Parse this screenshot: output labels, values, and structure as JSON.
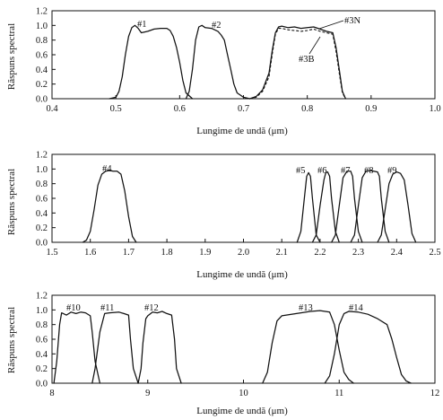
{
  "chart_data": [
    {
      "type": "line",
      "xlabel": "Lungime de undă (μm)",
      "ylabel": "Răspuns spectral",
      "xlim": [
        0.4,
        1.0
      ],
      "ylim": [
        0.0,
        1.2
      ],
      "x_ticks": [
        "0.4",
        "0.5",
        "0.6",
        "0.7",
        "0.8",
        "0.9",
        "1.0"
      ],
      "y_ticks": [
        "0.0",
        "0.2",
        "0.4",
        "0.6",
        "0.8",
        "1.0",
        "1.2"
      ],
      "series": [
        {
          "name": "#1",
          "x": [
            0.49,
            0.5,
            0.505,
            0.51,
            0.515,
            0.52,
            0.525,
            0.53,
            0.535,
            0.54,
            0.55,
            0.56,
            0.57,
            0.58,
            0.585,
            0.59,
            0.595,
            0.6,
            0.605,
            0.61,
            0.62
          ],
          "y": [
            0.0,
            0.02,
            0.1,
            0.3,
            0.6,
            0.85,
            0.97,
            1.0,
            0.96,
            0.9,
            0.92,
            0.95,
            0.96,
            0.96,
            0.93,
            0.85,
            0.7,
            0.5,
            0.25,
            0.08,
            0.0
          ]
        },
        {
          "name": "#2",
          "x": [
            0.61,
            0.615,
            0.62,
            0.625,
            0.63,
            0.635,
            0.64,
            0.65,
            0.66,
            0.665,
            0.67,
            0.675,
            0.68,
            0.685,
            0.69,
            0.7,
            0.71
          ],
          "y": [
            0.0,
            0.1,
            0.4,
            0.8,
            0.98,
            1.0,
            0.97,
            0.96,
            0.92,
            0.87,
            0.8,
            0.6,
            0.4,
            0.2,
            0.08,
            0.02,
            0.0
          ]
        },
        {
          "name": "#3N",
          "x": [
            0.71,
            0.72,
            0.73,
            0.74,
            0.745,
            0.75,
            0.755,
            0.76,
            0.77,
            0.78,
            0.79,
            0.8,
            0.81,
            0.82,
            0.83,
            0.84,
            0.845,
            0.85,
            0.855,
            0.86
          ],
          "y": [
            0.0,
            0.03,
            0.12,
            0.35,
            0.65,
            0.9,
            0.98,
            0.99,
            0.97,
            0.98,
            0.96,
            0.97,
            0.98,
            0.95,
            0.92,
            0.9,
            0.7,
            0.4,
            0.1,
            0.0
          ]
        },
        {
          "name": "#3B",
          "x": [
            0.71,
            0.72,
            0.73,
            0.74,
            0.745,
            0.75,
            0.755,
            0.76,
            0.77,
            0.78,
            0.79,
            0.8,
            0.81,
            0.82,
            0.83,
            0.84,
            0.845,
            0.85,
            0.855,
            0.86
          ],
          "y": [
            0.0,
            0.02,
            0.1,
            0.3,
            0.6,
            0.88,
            0.96,
            0.96,
            0.94,
            0.93,
            0.92,
            0.93,
            0.95,
            0.92,
            0.9,
            0.88,
            0.65,
            0.35,
            0.08,
            0.0
          ]
        }
      ]
    },
    {
      "type": "line",
      "xlabel": "Lungime de undă (μm)",
      "ylabel": "Răspuns spectral",
      "xlim": [
        1.5,
        2.5
      ],
      "ylim": [
        0.0,
        1.2
      ],
      "x_ticks": [
        "1.5",
        "1.6",
        "1.7",
        "1.8",
        "1.9",
        "2.0",
        "2.1",
        "2.2",
        "2.3",
        "2.4",
        "2.5"
      ],
      "y_ticks": [
        "0.0",
        "0.2",
        "0.4",
        "0.6",
        "0.8",
        "1.0",
        "1.2"
      ],
      "series": [
        {
          "name": "#4",
          "x": [
            1.58,
            1.59,
            1.6,
            1.61,
            1.62,
            1.63,
            1.64,
            1.65,
            1.66,
            1.67,
            1.68,
            1.69,
            1.7,
            1.71,
            1.72
          ],
          "y": [
            0.0,
            0.03,
            0.15,
            0.45,
            0.78,
            0.93,
            0.97,
            0.98,
            0.97,
            0.97,
            0.93,
            0.7,
            0.35,
            0.08,
            0.0
          ]
        },
        {
          "name": "#5",
          "x": [
            2.14,
            2.15,
            2.16,
            2.165,
            2.17,
            2.175,
            2.18,
            2.19,
            2.2
          ],
          "y": [
            0.0,
            0.15,
            0.65,
            0.9,
            0.95,
            0.9,
            0.6,
            0.1,
            0.0
          ]
        },
        {
          "name": "#6",
          "x": [
            2.18,
            2.19,
            2.2,
            2.21,
            2.215,
            2.22,
            2.225,
            2.23,
            2.24,
            2.25
          ],
          "y": [
            0.0,
            0.1,
            0.5,
            0.85,
            0.95,
            0.96,
            0.9,
            0.6,
            0.15,
            0.0
          ]
        },
        {
          "name": "#7",
          "x": [
            2.23,
            2.24,
            2.25,
            2.26,
            2.27,
            2.28,
            2.285,
            2.29,
            2.3,
            2.31
          ],
          "y": [
            0.0,
            0.1,
            0.5,
            0.88,
            0.97,
            0.97,
            0.9,
            0.6,
            0.15,
            0.0
          ]
        },
        {
          "name": "#8",
          "x": [
            2.28,
            2.29,
            2.3,
            2.31,
            2.32,
            2.33,
            2.34,
            2.35,
            2.355,
            2.36,
            2.37,
            2.38
          ],
          "y": [
            0.0,
            0.1,
            0.5,
            0.88,
            0.97,
            0.98,
            0.97,
            0.96,
            0.9,
            0.6,
            0.15,
            0.0
          ]
        },
        {
          "name": "#9",
          "x": [
            2.35,
            2.36,
            2.37,
            2.38,
            2.39,
            2.4,
            2.41,
            2.42,
            2.43,
            2.44,
            2.45
          ],
          "y": [
            0.0,
            0.1,
            0.45,
            0.8,
            0.93,
            0.96,
            0.94,
            0.85,
            0.5,
            0.12,
            0.0
          ]
        }
      ]
    },
    {
      "type": "line",
      "xlabel": "Lungime de undă (μm)",
      "ylabel": "Răspuns spectral",
      "xlim": [
        8,
        12
      ],
      "ylim": [
        0.0,
        1.2
      ],
      "x_ticks": [
        "8",
        "9",
        "10",
        "11",
        "12"
      ],
      "y_ticks": [
        "0.0",
        "0.2",
        "0.4",
        "0.6",
        "0.8",
        "1.0",
        "1.2"
      ],
      "series": [
        {
          "name": "#10",
          "x": [
            8.02,
            8.05,
            8.08,
            8.1,
            8.15,
            8.2,
            8.25,
            8.3,
            8.35,
            8.4,
            8.42,
            8.45,
            8.5
          ],
          "y": [
            0.0,
            0.3,
            0.8,
            0.96,
            0.93,
            0.97,
            0.95,
            0.97,
            0.96,
            0.92,
            0.7,
            0.3,
            0.0
          ]
        },
        {
          "name": "#11",
          "x": [
            8.42,
            8.45,
            8.5,
            8.55,
            8.6,
            8.7,
            8.75,
            8.8,
            8.82,
            8.85,
            8.9
          ],
          "y": [
            0.0,
            0.2,
            0.7,
            0.95,
            0.96,
            0.97,
            0.95,
            0.93,
            0.6,
            0.2,
            0.0
          ]
        },
        {
          "name": "#12",
          "x": [
            8.9,
            8.93,
            8.95,
            8.98,
            9.0,
            9.05,
            9.1,
            9.15,
            9.2,
            9.25,
            9.28,
            9.3,
            9.35
          ],
          "y": [
            0.0,
            0.2,
            0.55,
            0.88,
            0.92,
            0.97,
            0.96,
            0.98,
            0.95,
            0.93,
            0.6,
            0.2,
            0.0
          ]
        },
        {
          "name": "#13",
          "x": [
            10.2,
            10.25,
            10.3,
            10.35,
            10.4,
            10.5,
            10.6,
            10.7,
            10.8,
            10.9,
            10.95,
            11.0,
            11.05,
            11.1,
            11.15
          ],
          "y": [
            0.0,
            0.15,
            0.55,
            0.85,
            0.92,
            0.94,
            0.96,
            0.98,
            0.99,
            0.97,
            0.8,
            0.45,
            0.15,
            0.05,
            0.0
          ]
        },
        {
          "name": "#14",
          "x": [
            10.85,
            10.9,
            10.95,
            11.0,
            11.05,
            11.1,
            11.2,
            11.3,
            11.4,
            11.5,
            11.55,
            11.6,
            11.65,
            11.7,
            11.75
          ],
          "y": [
            0.0,
            0.1,
            0.4,
            0.8,
            0.95,
            0.98,
            0.97,
            0.94,
            0.88,
            0.8,
            0.6,
            0.35,
            0.12,
            0.03,
            0.0
          ]
        }
      ]
    }
  ],
  "annotations": {
    "p1_b1": "#1",
    "p1_b2": "#2",
    "p1_b3n": "#3N",
    "p1_b3b": "#3B",
    "p2_b4": "#4",
    "p2_b5": "#5",
    "p2_b6": "#6",
    "p2_b7": "#7",
    "p2_b8": "#8",
    "p2_b9": "#9",
    "p3_b10": "#10",
    "p3_b11": "#11",
    "p3_b12": "#12",
    "p3_b13": "#13",
    "p3_b14": "#14"
  }
}
